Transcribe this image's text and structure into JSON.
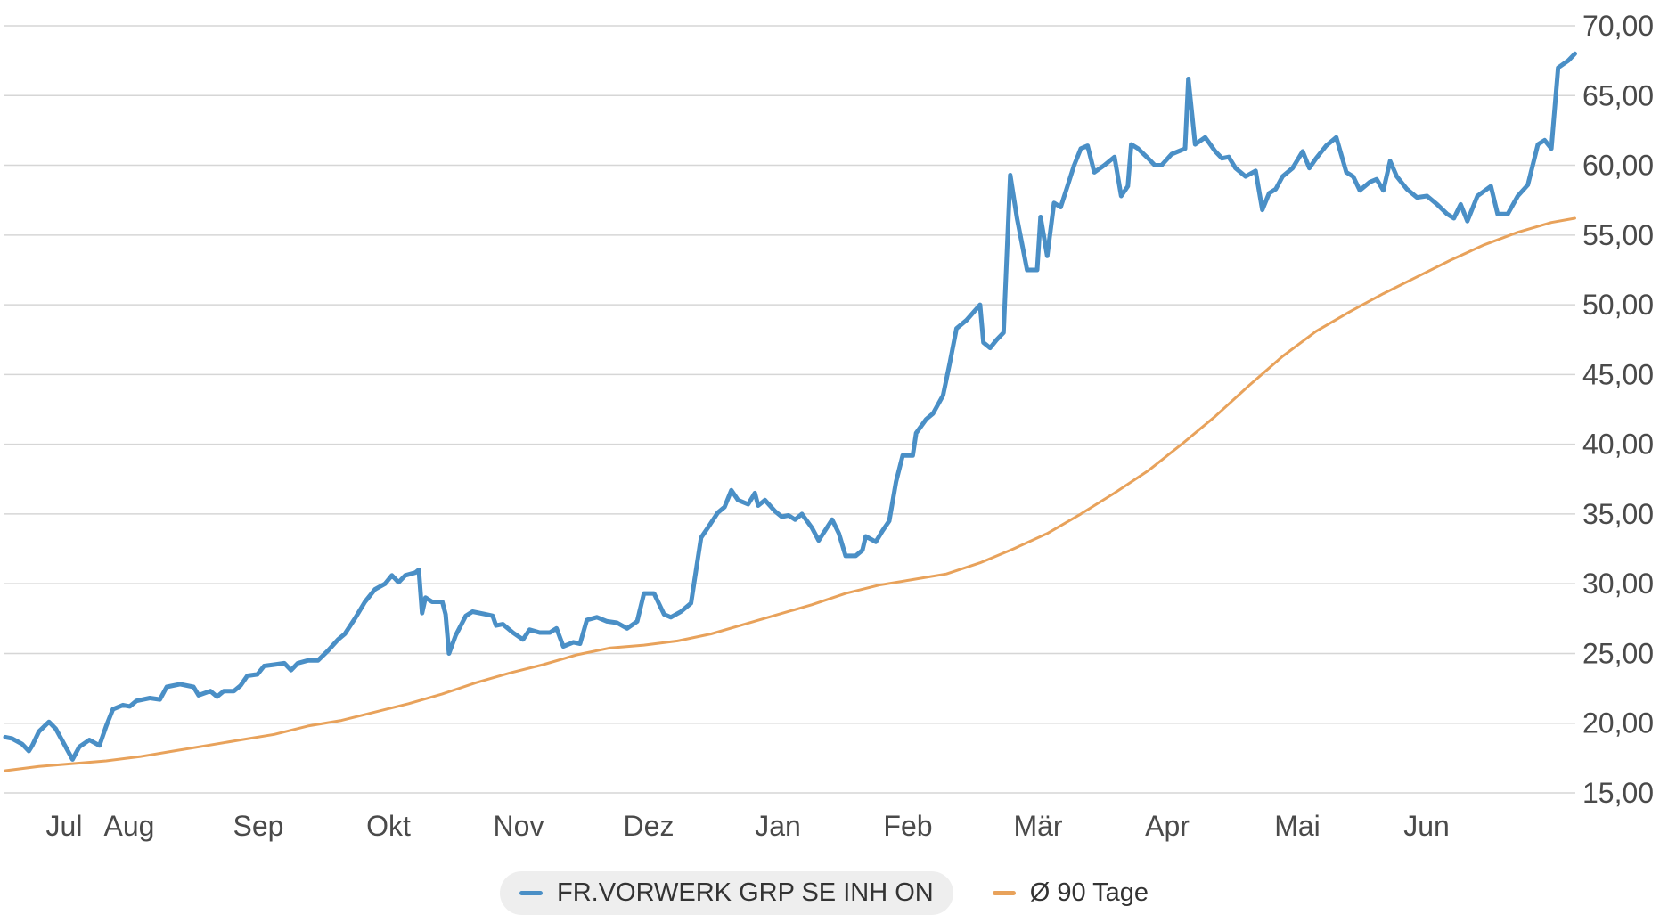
{
  "chart_data": {
    "type": "line",
    "y_axis": {
      "side": "right",
      "ylim": [
        15,
        70
      ],
      "ticks": [
        {
          "value": 15,
          "label": "15,00"
        },
        {
          "value": 20,
          "label": "20,00"
        },
        {
          "value": 25,
          "label": "25,00"
        },
        {
          "value": 30,
          "label": "30,00"
        },
        {
          "value": 35,
          "label": "35,00"
        },
        {
          "value": 40,
          "label": "40,00"
        },
        {
          "value": 45,
          "label": "45,00"
        },
        {
          "value": 50,
          "label": "50,00"
        },
        {
          "value": 55,
          "label": "55,00"
        },
        {
          "value": 60,
          "label": "60,00"
        },
        {
          "value": 65,
          "label": "65,00"
        },
        {
          "value": 70,
          "label": "70,00"
        }
      ]
    },
    "x_axis": {
      "labels": [
        "Jul",
        "Aug",
        "Sep",
        "Okt",
        "Nov",
        "Dez",
        "Jan",
        "Feb",
        "Mär",
        "Apr",
        "Mai",
        "Jun"
      ]
    },
    "grid": true,
    "legend_position": "bottom-center",
    "series": [
      {
        "name": "FR.VORWERK GRP SE INH ON",
        "color": "#4a8fc6",
        "points": [
          [
            0,
            19.0
          ],
          [
            0.08,
            18.9
          ],
          [
            0.2,
            18.5
          ],
          [
            0.28,
            18.0
          ],
          [
            0.32,
            18.4
          ],
          [
            0.4,
            19.4
          ],
          [
            0.52,
            20.1
          ],
          [
            0.6,
            19.6
          ],
          [
            0.7,
            18.5
          ],
          [
            0.8,
            17.4
          ],
          [
            0.88,
            18.3
          ],
          [
            1.0,
            18.8
          ],
          [
            1.12,
            18.4
          ],
          [
            1.2,
            19.8
          ],
          [
            1.28,
            21.0
          ],
          [
            1.4,
            21.3
          ],
          [
            1.48,
            21.2
          ],
          [
            1.56,
            21.6
          ],
          [
            1.72,
            21.8
          ],
          [
            1.84,
            21.7
          ],
          [
            1.92,
            22.6
          ],
          [
            2.08,
            22.8
          ],
          [
            2.24,
            22.6
          ],
          [
            2.3,
            22.0
          ],
          [
            2.44,
            22.3
          ],
          [
            2.52,
            21.9
          ],
          [
            2.6,
            22.3
          ],
          [
            2.72,
            22.3
          ],
          [
            2.8,
            22.7
          ],
          [
            2.88,
            23.4
          ],
          [
            3.0,
            23.5
          ],
          [
            3.08,
            24.1
          ],
          [
            3.2,
            24.2
          ],
          [
            3.32,
            24.3
          ],
          [
            3.4,
            23.8
          ],
          [
            3.48,
            24.3
          ],
          [
            3.6,
            24.5
          ],
          [
            3.72,
            24.5
          ],
          [
            3.84,
            25.2
          ],
          [
            3.96,
            26.0
          ],
          [
            4.04,
            26.4
          ],
          [
            4.16,
            27.5
          ],
          [
            4.28,
            28.7
          ],
          [
            4.4,
            29.6
          ],
          [
            4.52,
            30.0
          ],
          [
            4.6,
            30.6
          ],
          [
            4.68,
            30.1
          ],
          [
            4.76,
            30.6
          ],
          [
            4.88,
            30.8
          ],
          [
            4.92,
            31.0
          ],
          [
            4.96,
            27.9
          ],
          [
            5.0,
            29.0
          ],
          [
            5.08,
            28.7
          ],
          [
            5.2,
            28.7
          ],
          [
            5.24,
            27.8
          ],
          [
            5.28,
            25.0
          ],
          [
            5.36,
            26.3
          ],
          [
            5.48,
            27.7
          ],
          [
            5.56,
            28.0
          ],
          [
            5.72,
            27.8
          ],
          [
            5.8,
            27.7
          ],
          [
            5.84,
            27.0
          ],
          [
            5.92,
            27.1
          ],
          [
            6.04,
            26.5
          ],
          [
            6.16,
            26.0
          ],
          [
            6.24,
            26.7
          ],
          [
            6.36,
            26.5
          ],
          [
            6.48,
            26.5
          ],
          [
            6.56,
            26.8
          ],
          [
            6.64,
            25.5
          ],
          [
            6.76,
            25.8
          ],
          [
            6.84,
            25.7
          ],
          [
            6.92,
            27.4
          ],
          [
            7.04,
            27.6
          ],
          [
            7.16,
            27.3
          ],
          [
            7.28,
            27.2
          ],
          [
            7.4,
            26.8
          ],
          [
            7.52,
            27.3
          ],
          [
            7.6,
            29.3
          ],
          [
            7.72,
            29.3
          ],
          [
            7.84,
            27.8
          ],
          [
            7.92,
            27.6
          ],
          [
            8.04,
            28.0
          ],
          [
            8.16,
            28.6
          ],
          [
            8.28,
            33.3
          ],
          [
            8.36,
            34.0
          ],
          [
            8.48,
            35.1
          ],
          [
            8.56,
            35.5
          ],
          [
            8.64,
            36.7
          ],
          [
            8.72,
            36.0
          ],
          [
            8.84,
            35.7
          ],
          [
            8.92,
            36.5
          ],
          [
            8.96,
            35.6
          ],
          [
            9.04,
            36.0
          ],
          [
            9.16,
            35.2
          ],
          [
            9.24,
            34.8
          ],
          [
            9.32,
            34.9
          ],
          [
            9.4,
            34.6
          ],
          [
            9.48,
            35.0
          ],
          [
            9.6,
            34.0
          ],
          [
            9.68,
            33.1
          ],
          [
            9.84,
            34.6
          ],
          [
            9.92,
            33.6
          ],
          [
            10.0,
            32.0
          ],
          [
            10.12,
            32.0
          ],
          [
            10.2,
            32.4
          ],
          [
            10.24,
            33.4
          ],
          [
            10.36,
            33.0
          ],
          [
            10.44,
            33.8
          ],
          [
            10.52,
            34.5
          ],
          [
            10.6,
            37.3
          ],
          [
            10.68,
            39.2
          ],
          [
            10.8,
            39.2
          ],
          [
            10.84,
            40.8
          ],
          [
            10.96,
            41.8
          ],
          [
            11.04,
            42.2
          ],
          [
            11.16,
            43.5
          ],
          [
            11.24,
            45.8
          ],
          [
            11.32,
            48.3
          ],
          [
            11.44,
            48.9
          ],
          [
            11.6,
            50.0
          ],
          [
            11.64,
            47.3
          ],
          [
            11.72,
            46.9
          ],
          [
            11.8,
            47.5
          ],
          [
            11.88,
            48.0
          ],
          [
            11.96,
            59.3
          ],
          [
            12.04,
            56.2
          ],
          [
            12.16,
            52.5
          ],
          [
            12.28,
            52.5
          ],
          [
            12.32,
            56.3
          ],
          [
            12.4,
            53.5
          ],
          [
            12.48,
            57.3
          ],
          [
            12.56,
            57.0
          ],
          [
            12.64,
            58.5
          ],
          [
            12.72,
            60.0
          ],
          [
            12.8,
            61.2
          ],
          [
            12.88,
            61.4
          ],
          [
            12.96,
            59.5
          ],
          [
            13.08,
            60.0
          ],
          [
            13.2,
            60.6
          ],
          [
            13.28,
            57.8
          ],
          [
            13.36,
            58.5
          ],
          [
            13.4,
            61.5
          ],
          [
            13.48,
            61.2
          ],
          [
            13.6,
            60.5
          ],
          [
            13.68,
            60.0
          ],
          [
            13.76,
            60.0
          ],
          [
            13.88,
            60.8
          ],
          [
            14.04,
            61.2
          ],
          [
            14.08,
            66.2
          ],
          [
            14.16,
            61.5
          ],
          [
            14.28,
            62.0
          ],
          [
            14.4,
            61.0
          ],
          [
            14.48,
            60.5
          ],
          [
            14.56,
            60.6
          ],
          [
            14.64,
            59.8
          ],
          [
            14.76,
            59.2
          ],
          [
            14.88,
            59.6
          ],
          [
            14.96,
            56.8
          ],
          [
            15.04,
            58.0
          ],
          [
            15.12,
            58.3
          ],
          [
            15.2,
            59.2
          ],
          [
            15.32,
            59.8
          ],
          [
            15.44,
            61.0
          ],
          [
            15.52,
            59.8
          ],
          [
            15.6,
            60.5
          ],
          [
            15.72,
            61.4
          ],
          [
            15.84,
            62.0
          ],
          [
            15.96,
            59.5
          ],
          [
            16.04,
            59.2
          ],
          [
            16.12,
            58.2
          ],
          [
            16.24,
            58.8
          ],
          [
            16.32,
            59.0
          ],
          [
            16.4,
            58.2
          ],
          [
            16.48,
            60.3
          ],
          [
            16.56,
            59.2
          ],
          [
            16.68,
            58.3
          ],
          [
            16.8,
            57.7
          ],
          [
            16.92,
            57.8
          ],
          [
            17.04,
            57.2
          ],
          [
            17.16,
            56.5
          ],
          [
            17.24,
            56.2
          ],
          [
            17.32,
            57.2
          ],
          [
            17.4,
            56.0
          ],
          [
            17.52,
            57.8
          ],
          [
            17.68,
            58.5
          ],
          [
            17.76,
            56.5
          ],
          [
            17.88,
            56.5
          ],
          [
            18.0,
            57.8
          ],
          [
            18.12,
            58.6
          ],
          [
            18.24,
            61.5
          ],
          [
            18.32,
            61.8
          ],
          [
            18.4,
            61.2
          ],
          [
            18.48,
            67.0
          ],
          [
            18.6,
            67.5
          ],
          [
            18.68,
            68.0
          ]
        ]
      },
      {
        "name": "Ø 90 Tage",
        "color": "#e8a25b",
        "points": [
          [
            0,
            16.6
          ],
          [
            0.4,
            16.9
          ],
          [
            0.8,
            17.1
          ],
          [
            1.2,
            17.3
          ],
          [
            1.6,
            17.6
          ],
          [
            2.0,
            18.0
          ],
          [
            2.4,
            18.4
          ],
          [
            2.8,
            18.8
          ],
          [
            3.2,
            19.2
          ],
          [
            3.6,
            19.8
          ],
          [
            4.0,
            20.2
          ],
          [
            4.4,
            20.8
          ],
          [
            4.8,
            21.4
          ],
          [
            5.2,
            22.1
          ],
          [
            5.6,
            22.9
          ],
          [
            6.0,
            23.6
          ],
          [
            6.4,
            24.2
          ],
          [
            6.8,
            24.9
          ],
          [
            7.2,
            25.4
          ],
          [
            7.6,
            25.6
          ],
          [
            8.0,
            25.9
          ],
          [
            8.4,
            26.4
          ],
          [
            8.8,
            27.1
          ],
          [
            9.2,
            27.8
          ],
          [
            9.6,
            28.5
          ],
          [
            10.0,
            29.3
          ],
          [
            10.4,
            29.9
          ],
          [
            10.8,
            30.3
          ],
          [
            11.2,
            30.7
          ],
          [
            11.6,
            31.5
          ],
          [
            12.0,
            32.5
          ],
          [
            12.4,
            33.6
          ],
          [
            12.8,
            35.0
          ],
          [
            13.2,
            36.5
          ],
          [
            13.6,
            38.1
          ],
          [
            14.0,
            40.0
          ],
          [
            14.4,
            42.0
          ],
          [
            14.8,
            44.2
          ],
          [
            15.2,
            46.3
          ],
          [
            15.6,
            48.1
          ],
          [
            16.0,
            49.5
          ],
          [
            16.4,
            50.8
          ],
          [
            16.8,
            52.0
          ],
          [
            17.2,
            53.2
          ],
          [
            17.6,
            54.3
          ],
          [
            18.0,
            55.2
          ],
          [
            18.4,
            55.9
          ],
          [
            18.68,
            56.2
          ]
        ]
      }
    ]
  }
}
